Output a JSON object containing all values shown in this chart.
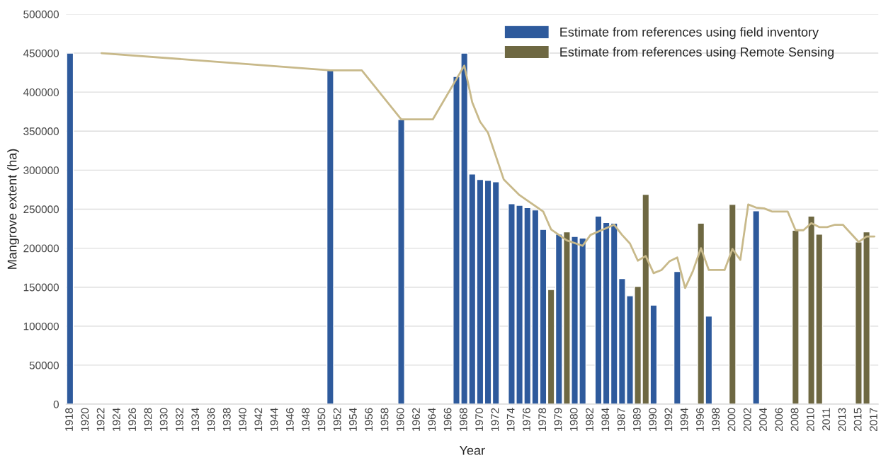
{
  "chart_data": {
    "type": "bar",
    "xlabel": "Year",
    "ylabel": "Mangrove extent (ha)",
    "categories": [
      "1918",
      null,
      "1920",
      null,
      "1922",
      null,
      "1924",
      null,
      "1926",
      null,
      "1928",
      null,
      "1930",
      null,
      "1932",
      null,
      "1934",
      null,
      "1936",
      null,
      "1938",
      null,
      "1940",
      null,
      "1942",
      null,
      "1944",
      null,
      "1946",
      null,
      "1948",
      null,
      "1950",
      null,
      "1952",
      null,
      "1954",
      null,
      "1956",
      null,
      "1958",
      null,
      "1960",
      null,
      "1962",
      null,
      "1964",
      null,
      "1966",
      null,
      "1968",
      null,
      "1970",
      null,
      "1972",
      null,
      "1974",
      null,
      "1976",
      null,
      "1978",
      null,
      "1979",
      null,
      "1980",
      null,
      "1982",
      null,
      "1984",
      null,
      "1987",
      null,
      "1989",
      null,
      "1990",
      null,
      "1992",
      null,
      "1994",
      null,
      "1996",
      null,
      "1998",
      null,
      "2000",
      null,
      "2002",
      null,
      "2004",
      null,
      "2006",
      null,
      "2008",
      null,
      "2010",
      null,
      "2011",
      null,
      "2013",
      null,
      "2015",
      null,
      "2017"
    ],
    "series": [
      {
        "name": "Estimate from references using field inventory",
        "color": "#2e5a9c",
        "values": [
          450000,
          null,
          null,
          null,
          null,
          null,
          null,
          null,
          null,
          null,
          null,
          null,
          null,
          null,
          null,
          null,
          null,
          null,
          null,
          null,
          null,
          null,
          null,
          null,
          null,
          null,
          null,
          null,
          null,
          null,
          null,
          null,
          null,
          428000,
          null,
          null,
          null,
          null,
          null,
          null,
          null,
          null,
          365000,
          null,
          null,
          null,
          null,
          null,
          null,
          420000,
          450000,
          295000,
          288000,
          287000,
          285000,
          null,
          257000,
          255000,
          252000,
          249000,
          224000,
          null,
          218000,
          null,
          215000,
          213000,
          null,
          241000,
          233000,
          232000,
          161000,
          139000,
          null,
          null,
          127000,
          null,
          null,
          170000,
          null,
          null,
          null,
          113000,
          null,
          null,
          null,
          null,
          null,
          248000,
          null,
          null,
          null,
          null,
          null,
          null,
          null,
          null,
          null,
          null,
          null,
          null,
          null,
          null,
          null
        ]
      },
      {
        "name": "Estimate from references using Remote Sensing",
        "color": "#6e6842",
        "values": [
          null,
          null,
          null,
          null,
          null,
          null,
          null,
          null,
          null,
          null,
          null,
          null,
          null,
          null,
          null,
          null,
          null,
          null,
          null,
          null,
          null,
          null,
          null,
          null,
          null,
          null,
          null,
          null,
          null,
          null,
          null,
          null,
          null,
          null,
          null,
          null,
          null,
          null,
          null,
          null,
          null,
          null,
          null,
          null,
          null,
          null,
          null,
          null,
          null,
          null,
          null,
          null,
          null,
          null,
          null,
          null,
          null,
          null,
          null,
          null,
          null,
          147000,
          null,
          221000,
          null,
          null,
          null,
          null,
          null,
          null,
          null,
          null,
          151000,
          269000,
          null,
          null,
          null,
          null,
          null,
          null,
          232000,
          null,
          null,
          null,
          256000,
          null,
          null,
          null,
          null,
          null,
          null,
          null,
          223000,
          null,
          241000,
          218000,
          null,
          null,
          null,
          null,
          208000,
          221000,
          null
        ]
      },
      {
        "type": "line",
        "color": "#c8b98a",
        "values": [
          null,
          null,
          null,
          null,
          450000,
          null,
          null,
          null,
          null,
          null,
          null,
          null,
          null,
          null,
          null,
          null,
          null,
          null,
          null,
          null,
          null,
          null,
          null,
          null,
          null,
          null,
          null,
          null,
          null,
          null,
          null,
          null,
          null,
          428000,
          null,
          null,
          null,
          428000,
          null,
          null,
          null,
          null,
          365000,
          null,
          null,
          null,
          365000,
          null,
          null,
          null,
          434000,
          387000,
          362000,
          348000,
          null,
          288000,
          null,
          268000,
          null,
          null,
          247000,
          224000,
          null,
          210000,
          null,
          203000,
          217000,
          null,
          null,
          230000,
          217000,
          206000,
          184000,
          190000,
          168000,
          172000,
          183000,
          188000,
          149000,
          171000,
          200000,
          172000,
          null,
          172000,
          199000,
          185000,
          256000,
          252000,
          251000,
          247000,
          null,
          247000,
          223000,
          223000,
          232000,
          227000,
          227000,
          230000,
          230000,
          null,
          208000,
          215000,
          215000
        ]
      }
    ],
    "ylim": [
      0,
      500000
    ],
    "yticks": [
      0,
      50000,
      100000,
      150000,
      200000,
      250000,
      300000,
      350000,
      400000,
      450000,
      500000
    ],
    "grid": "y",
    "legend": "top right"
  }
}
